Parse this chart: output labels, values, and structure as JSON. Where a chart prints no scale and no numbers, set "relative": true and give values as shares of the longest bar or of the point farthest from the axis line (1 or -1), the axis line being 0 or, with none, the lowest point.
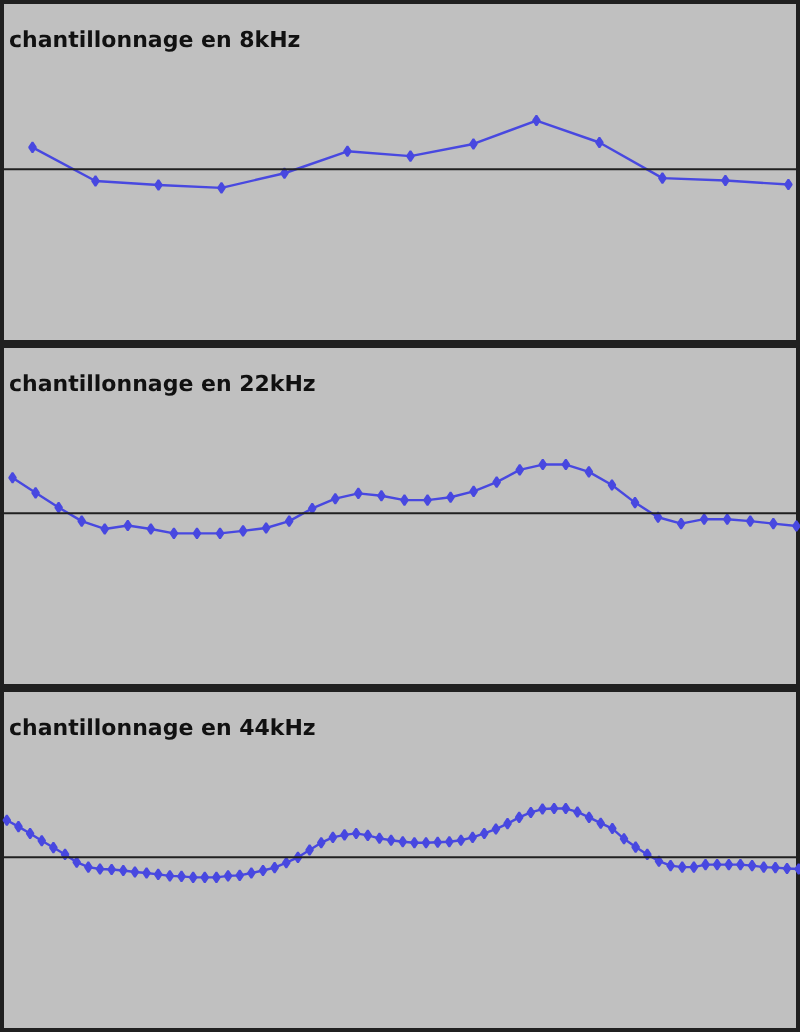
{
  "chart_data": [
    {
      "type": "line",
      "title": "chantillonnage en 8kHz",
      "relative": true,
      "marker": "diamond",
      "color": "#4848e0",
      "categories": [
        null,
        null,
        null,
        null,
        null,
        null,
        null,
        null,
        null,
        null,
        null,
        null,
        null
      ],
      "values": [
        0.45,
        -0.24,
        -0.32,
        -0.38,
        -0.08,
        0.37,
        0.27,
        0.52,
        1,
        0.55,
        -0.18,
        -0.23,
        -0.31
      ]
    },
    {
      "type": "line",
      "title": "chantillonnage en 22kHz",
      "relative": true,
      "marker": "diamond",
      "color": "#4848e0",
      "categories": [
        null,
        null,
        null,
        null,
        null,
        null,
        null,
        null,
        null,
        null,
        null,
        null,
        null,
        null,
        null,
        null,
        null,
        null,
        null,
        null,
        null,
        null,
        null,
        null,
        null,
        null,
        null,
        null,
        null,
        null,
        null,
        null,
        null,
        null,
        null
      ],
      "values": [
        0.73,
        0.42,
        0.12,
        -0.16,
        -0.32,
        -0.25,
        -0.32,
        -0.41,
        -0.41,
        -0.41,
        -0.36,
        -0.3,
        -0.16,
        0.1,
        0.3,
        0.41,
        0.36,
        0.27,
        0.27,
        0.33,
        0.45,
        0.64,
        0.89,
        1,
        1,
        0.85,
        0.58,
        0.22,
        -0.08,
        -0.21,
        -0.12,
        -0.12,
        -0.16,
        -0.21,
        -0.26
      ]
    },
    {
      "type": "line",
      "title": "chantillonnage en 44kHz",
      "relative": true,
      "marker": "diamond",
      "color": "#4848e0",
      "categories": [
        null,
        null,
        null,
        null,
        null,
        null,
        null,
        null,
        null,
        null,
        null,
        null,
        null,
        null,
        null,
        null,
        null,
        null,
        null,
        null,
        null,
        null,
        null,
        null,
        null,
        null,
        null,
        null,
        null,
        null,
        null,
        null,
        null,
        null,
        null,
        null,
        null,
        null,
        null,
        null,
        null,
        null,
        null,
        null,
        null,
        null,
        null,
        null,
        null,
        null,
        null,
        null,
        null,
        null,
        null,
        null,
        null,
        null,
        null,
        null,
        null,
        null,
        null,
        null,
        null,
        null,
        null,
        null,
        null
      ],
      "values": [
        0.76,
        0.63,
        0.49,
        0.34,
        0.2,
        0.06,
        -0.1,
        -0.2,
        -0.24,
        -0.25,
        -0.27,
        -0.3,
        -0.32,
        -0.35,
        -0.38,
        -0.39,
        -0.41,
        -0.41,
        -0.41,
        -0.38,
        -0.37,
        -0.32,
        -0.27,
        -0.21,
        -0.11,
        0,
        0.15,
        0.3,
        0.41,
        0.46,
        0.49,
        0.45,
        0.39,
        0.35,
        0.32,
        0.3,
        0.3,
        0.31,
        0.32,
        0.35,
        0.41,
        0.49,
        0.58,
        0.69,
        0.82,
        0.92,
        0.99,
        1,
        1,
        0.93,
        0.82,
        0.7,
        0.59,
        0.38,
        0.21,
        0.06,
        -0.08,
        -0.17,
        -0.2,
        -0.2,
        -0.15,
        -0.15,
        -0.15,
        -0.15,
        -0.17,
        -0.2,
        -0.21,
        -0.23,
        -0.24
      ]
    }
  ]
}
